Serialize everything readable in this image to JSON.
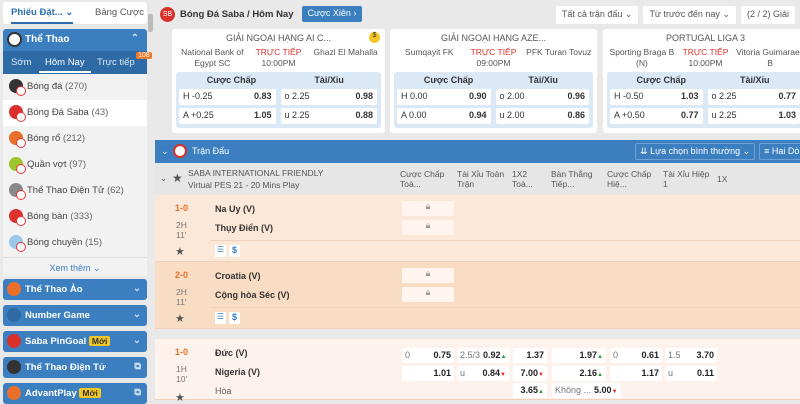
{
  "top_tabs": {
    "bet_slip": "Phiếu Đặt...",
    "bet_table": "Bảng Cược"
  },
  "sidebar": {
    "sport_header": "Thể Thao",
    "subtabs": [
      "Sớm",
      "Hôm Nay",
      "Trực tiếp"
    ],
    "live_count": "108",
    "items": [
      {
        "label": "Bóng đá",
        "count": "(270)",
        "color": "#333"
      },
      {
        "label": "Bóng Đá Saba",
        "count": "(43)",
        "color": "#d9312b"
      },
      {
        "label": "Bóng rổ",
        "count": "(212)",
        "color": "#e8702a"
      },
      {
        "label": "Quần vợt",
        "count": "(97)",
        "color": "#9cc52e"
      },
      {
        "label": "Thể Thao Điện Tử",
        "count": "(62)",
        "color": "#888"
      },
      {
        "label": "Bóng bàn",
        "count": "(333)",
        "color": "#d9312b"
      },
      {
        "label": "Bóng chuyền",
        "count": "(15)",
        "color": "#9cc8ea"
      }
    ],
    "more": "Xem thêm",
    "sections": [
      {
        "label": "Thể Thao Ảo",
        "badge": "",
        "action": "chevron"
      },
      {
        "label": "Number Game",
        "badge": "",
        "action": "chevron"
      },
      {
        "label": "Saba PinGoal",
        "badge": "Mới",
        "action": "chevron"
      },
      {
        "label": "Thể Thao Điện Tử",
        "badge": "",
        "action": "external"
      },
      {
        "label": "AdvantPlay",
        "badge": "Mới",
        "action": "external"
      }
    ]
  },
  "header": {
    "logo": "SB",
    "title": "Bóng Đá Saba / Hôm Nay",
    "parlay_button": "Cược Xiên",
    "filter_matches": "Tất cả trận đấu",
    "filter_time": "Từ trước đến nay",
    "league_count": "(2 / 2) Giải"
  },
  "cards": [
    {
      "league": "GIẢI NGOẠI HẠNG AI C...",
      "home": "National Bank of Egypt SC",
      "away": "Ghazl El Mahalla",
      "status": "TRỰC TIẾP",
      "time": "10:00PM",
      "hcap_label": "Cược Chấp",
      "ou_label": "Tài/Xỉu",
      "h_line": "H -0.25",
      "h_odds": "0.83",
      "a_line": "A +0.25",
      "a_odds": "1.05",
      "o_line": "o 2.25",
      "o_odds": "0.98",
      "u_line": "u 2.25",
      "u_odds": "0.88"
    },
    {
      "league": "GIẢI NGOẠI HẠNG AZE...",
      "home": "Sumqayit FK",
      "away": "PFK Turan Tovuz",
      "status": "TRỰC TIẾP",
      "time": "09:00PM",
      "hcap_label": "Cược Chấp",
      "ou_label": "Tài/Xỉu",
      "h_line": "H 0.00",
      "h_odds": "0.90",
      "a_line": "A 0.00",
      "a_odds": "0.94",
      "o_line": "o 2.00",
      "o_odds": "0.96",
      "u_line": "u 2.00",
      "u_odds": "0.86"
    },
    {
      "league": "PORTUGAL LIGA 3",
      "home": "Sporting Braga B (N)",
      "away": "Vitoria Guimaraes B",
      "status": "TRỰC TIẾP",
      "time": "10:00PM",
      "hcap_label": "Cược Chấp",
      "ou_label": "Tài/Xỉu",
      "h_line": "H -0.50",
      "h_odds": "1.03",
      "a_line": "A +0.50",
      "a_odds": "0.77",
      "o_line": "o 2.25",
      "o_odds": "0.77",
      "u_line": "u 2.25",
      "u_odds": "1.03"
    }
  ],
  "section": {
    "title": "Trận Đấu",
    "sort": "Lựa chọn bình thường",
    "view": "Hai Dòng"
  },
  "table": {
    "league": "SABA INTERNATIONAL FRIENDLY Virtual PES 21 - 20 Mins Play",
    "columns": [
      "Cược Chấp Toà...",
      "Tài Xỉu Toàn Trận",
      "1X2 Toà...",
      "Bàn Thắng Tiếp...",
      "Cược Chấp Hiệ...",
      "Tài Xỉu Hiệp 1",
      "1X"
    ],
    "matches": [
      {
        "score": "1-0",
        "period": "2H",
        "minute": "11'",
        "home": "Na Uy (V)",
        "away": "Thụy Điển (V)"
      },
      {
        "score": "2-0",
        "period": "2H",
        "minute": "11'",
        "home": "Croatia (V)",
        "away": "Cộng hòa Séc (V)"
      },
      {
        "score": "1-0",
        "period": "1H",
        "minute": "10'",
        "home": "Đức (V)",
        "away": "Nigeria (V)",
        "draw": "Hòa",
        "odds": {
          "hcap_line": "0",
          "hcap_home": "0.75",
          "hcap_away": "1.01",
          "ou_line": "2.5/3",
          "ou_over": "0.92",
          "ou_u": "u",
          "ou_under": "0.84",
          "x12_home": "1.37",
          "x12_away": "7.00",
          "x12_draw": "3.65",
          "next_home": "1.97",
          "next_away": "2.16",
          "next_none_label": "Không ...",
          "next_none": "5.00",
          "h1_hcap_line": "0",
          "h1_hcap_home": "0.61",
          "h1_hcap_away": "1.17",
          "h1_ou_line": "1.5",
          "h1_ou_over": "3.70",
          "h1_ou_u": "u",
          "h1_ou_under": "0.11"
        }
      }
    ]
  },
  "colors": {
    "primary": "#3b7fc0",
    "live": "#d9312b",
    "score": "#e8702a",
    "row_live": "#fce8d8"
  }
}
